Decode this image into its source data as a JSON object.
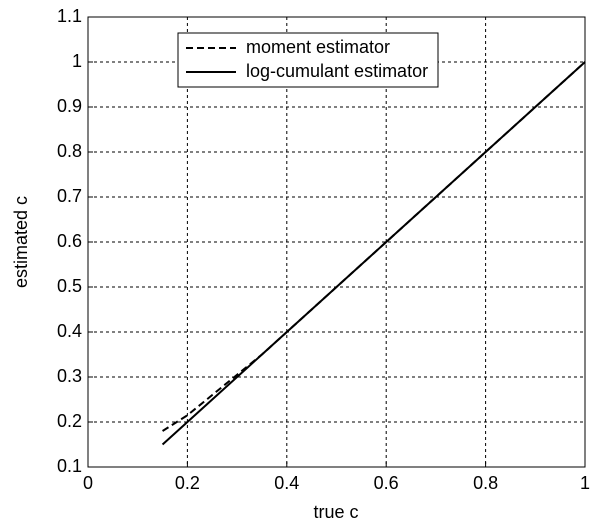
{
  "chart_data": {
    "type": "line",
    "xlabel": "true c",
    "ylabel": "estimated c",
    "x": [
      0.15,
      0.2,
      0.25,
      0.3,
      0.35,
      0.4,
      0.5,
      0.6,
      0.7,
      0.8,
      0.9,
      1
    ],
    "series": [
      {
        "name": "moment estimator",
        "color": "#000000",
        "linestyle": "dashed",
        "values": [
          0.18,
          0.215,
          0.26,
          0.305,
          0.35,
          0.4,
          0.5,
          0.6,
          0.7,
          0.8,
          0.9,
          1
        ]
      },
      {
        "name": "log-cumulant estimator",
        "color": "#000000",
        "linestyle": "solid",
        "values": [
          0.15,
          0.2,
          0.25,
          0.3,
          0.35,
          0.4,
          0.5,
          0.6,
          0.7,
          0.8,
          0.9,
          1
        ]
      }
    ],
    "xlim": [
      0,
      1
    ],
    "xticks": [
      0,
      0.2,
      0.4,
      0.6,
      0.8,
      1
    ],
    "ylim": [
      0.1,
      1.1
    ],
    "yticks": [
      0.1,
      0.2,
      0.3,
      0.4,
      0.5,
      0.6,
      0.7,
      0.8,
      0.9,
      1,
      1.1
    ],
    "grid": true,
    "legend": "top"
  }
}
